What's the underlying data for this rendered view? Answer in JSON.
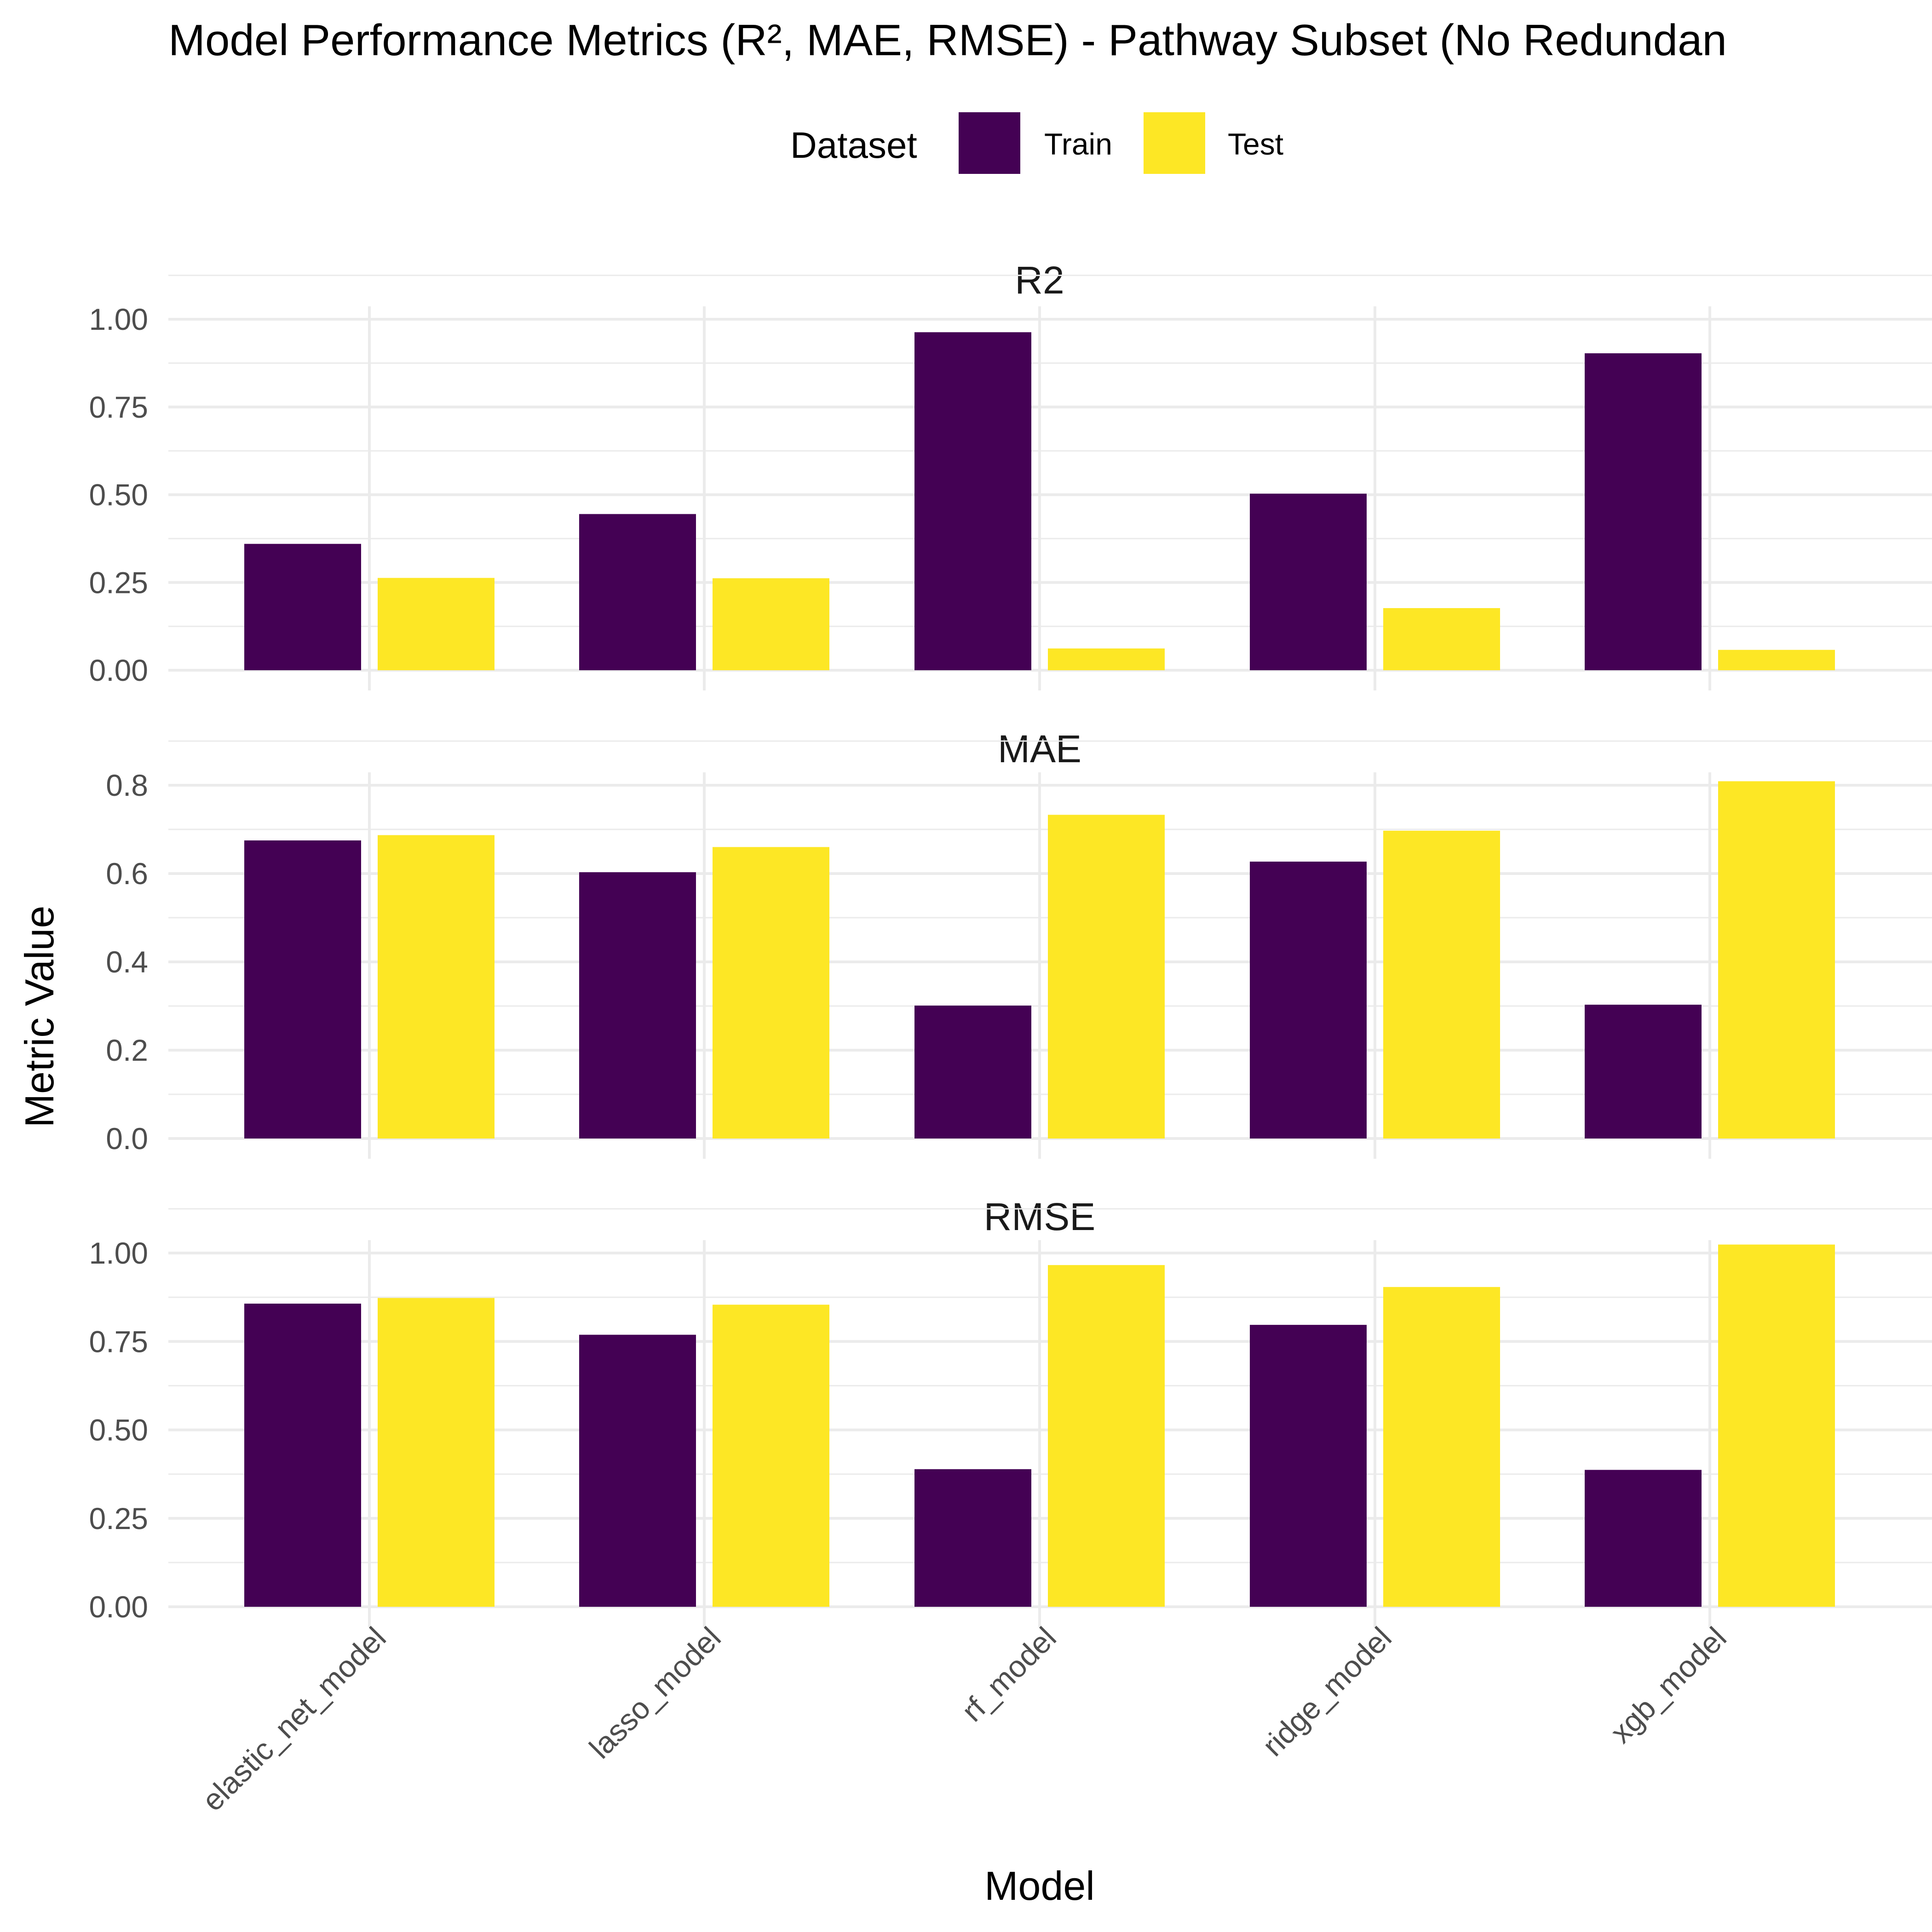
{
  "chart_data": {
    "type": "bar",
    "title": "Model Performance Metrics (R², MAE, RMSE) - Pathway Subset (No Redundan",
    "xlabel": "Model",
    "ylabel": "Metric Value",
    "legend": {
      "title": "Dataset",
      "position": "top",
      "entries": [
        {
          "name": "Train",
          "color": "#440154"
        },
        {
          "name": "Test",
          "color": "#FDE725"
        }
      ]
    },
    "grid": true,
    "categories": [
      "elastic_net_model",
      "lasso_model",
      "rf_model",
      "ridge_model",
      "xgb_model"
    ],
    "facets": [
      {
        "name": "R2",
        "ylim": [
          0,
          1.0
        ],
        "yticks": [
          0,
          0.25,
          0.5,
          0.75,
          1.0
        ],
        "ytick_labels": [
          "0.00",
          "0.25",
          "0.50",
          "0.75",
          "1.00"
        ],
        "series": [
          {
            "name": "Train",
            "values": [
              0.36,
              0.445,
              0.963,
              0.503,
              0.903
            ]
          },
          {
            "name": "Test",
            "values": [
              0.263,
              0.262,
              0.062,
              0.177,
              0.058
            ]
          }
        ]
      },
      {
        "name": "MAE",
        "ylim": [
          0,
          0.8
        ],
        "yticks": [
          0,
          0.2,
          0.4,
          0.6,
          0.8
        ],
        "ytick_labels": [
          "0.0",
          "0.2",
          "0.4",
          "0.6",
          "0.8"
        ],
        "series": [
          {
            "name": "Train",
            "values": [
              0.675,
              0.603,
              0.301,
              0.627,
              0.303
            ]
          },
          {
            "name": "Test",
            "values": [
              0.687,
              0.66,
              0.733,
              0.697,
              0.809
            ]
          }
        ]
      },
      {
        "name": "RMSE",
        "ylim": [
          0,
          1.0
        ],
        "yticks": [
          0,
          0.25,
          0.5,
          0.75,
          1.0
        ],
        "ytick_labels": [
          "0.00",
          "0.25",
          "0.50",
          "0.75",
          "1.00"
        ],
        "series": [
          {
            "name": "Train",
            "values": [
              0.857,
              0.769,
              0.389,
              0.797,
              0.387
            ]
          },
          {
            "name": "Test",
            "values": [
              0.873,
              0.854,
              0.966,
              0.904,
              1.024
            ]
          }
        ]
      }
    ]
  }
}
